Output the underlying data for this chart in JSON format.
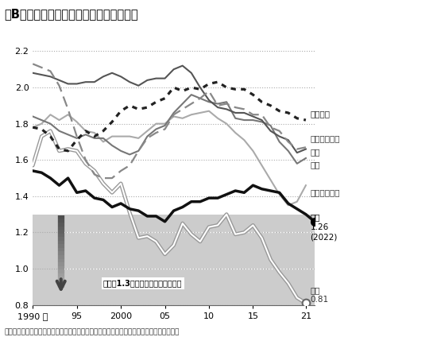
{
  "title": "図B　増加に転じた欧米の合計特殊出生率",
  "caption": "（世界銀行、各国政府統計、厚生労働省「人口動態総覧（率）の国際比較」等を基に作成）",
  "xlim": [
    1990,
    2022
  ],
  "ylim": [
    0.8,
    2.25
  ],
  "yticks": [
    0.8,
    1.0,
    1.2,
    1.4,
    1.6,
    1.8,
    2.0,
    2.2
  ],
  "xticks": [
    1990,
    1995,
    2000,
    2005,
    2010,
    2015,
    2021
  ],
  "xticklabels": [
    "1990 年",
    "95",
    "2000",
    "05",
    "10",
    "15",
    "21"
  ],
  "threshold": 1.3,
  "threshold_label": "出生率1.3未満＝急速な人口減少に",
  "japan_label": "日本\n1.26\n(2022)",
  "korea_label": "韓国\n0.81",
  "france_label": "フランス",
  "sweden_label": "スウェーデン",
  "usa_label": "米国",
  "uk_label": "英国",
  "finland_label": "フィンランド",
  "france": {
    "years": [
      1990,
      1991,
      1992,
      1993,
      1994,
      1995,
      1996,
      1997,
      1998,
      1999,
      2000,
      2001,
      2002,
      2003,
      2004,
      2005,
      2006,
      2007,
      2008,
      2009,
      2010,
      2011,
      2012,
      2013,
      2014,
      2015,
      2016,
      2017,
      2018,
      2019,
      2020,
      2021
    ],
    "values": [
      1.78,
      1.77,
      1.73,
      1.66,
      1.65,
      1.71,
      1.76,
      1.73,
      1.76,
      1.81,
      1.87,
      1.9,
      1.88,
      1.89,
      1.92,
      1.94,
      2.0,
      1.98,
      2.0,
      1.99,
      2.02,
      2.03,
      2.0,
      1.99,
      1.99,
      1.96,
      1.92,
      1.9,
      1.87,
      1.86,
      1.83,
      1.82
    ],
    "color": "#222222",
    "linewidth": 1.8
  },
  "sweden": {
    "years": [
      1990,
      1991,
      1992,
      1993,
      1994,
      1995,
      1996,
      1997,
      1998,
      1999,
      2000,
      2001,
      2002,
      2003,
      2004,
      2005,
      2006,
      2007,
      2008,
      2009,
      2010,
      2011,
      2012,
      2013,
      2014,
      2015,
      2016,
      2017,
      2018,
      2019,
      2020,
      2021
    ],
    "values": [
      2.13,
      2.11,
      2.09,
      2.01,
      1.88,
      1.73,
      1.6,
      1.52,
      1.5,
      1.5,
      1.54,
      1.57,
      1.65,
      1.72,
      1.75,
      1.77,
      1.85,
      1.88,
      1.91,
      1.94,
      1.98,
      1.9,
      1.91,
      1.89,
      1.88,
      1.85,
      1.85,
      1.78,
      1.76,
      1.7,
      1.66,
      1.67
    ],
    "color": "#888888",
    "linewidth": 1.6
  },
  "usa": {
    "years": [
      1990,
      1991,
      1992,
      1993,
      1994,
      1995,
      1996,
      1997,
      1998,
      1999,
      2000,
      2001,
      2002,
      2003,
      2004,
      2005,
      2006,
      2007,
      2008,
      2009,
      2010,
      2011,
      2012,
      2013,
      2014,
      2015,
      2016,
      2017,
      2018,
      2019,
      2020,
      2021
    ],
    "values": [
      2.08,
      2.07,
      2.06,
      2.04,
      2.02,
      2.02,
      2.03,
      2.03,
      2.06,
      2.08,
      2.06,
      2.03,
      2.01,
      2.04,
      2.05,
      2.05,
      2.1,
      2.12,
      2.08,
      2.0,
      1.93,
      1.89,
      1.88,
      1.86,
      1.86,
      1.84,
      1.82,
      1.76,
      1.73,
      1.71,
      1.64,
      1.66
    ],
    "color": "#555555",
    "linewidth": 1.5
  },
  "uk": {
    "years": [
      1990,
      1991,
      1992,
      1993,
      1994,
      1995,
      1996,
      1997,
      1998,
      1999,
      2000,
      2001,
      2002,
      2003,
      2004,
      2005,
      2006,
      2007,
      2008,
      2009,
      2010,
      2011,
      2012,
      2013,
      2014,
      2015,
      2016,
      2017,
      2018,
      2019,
      2020,
      2021
    ],
    "values": [
      1.84,
      1.82,
      1.8,
      1.76,
      1.74,
      1.72,
      1.74,
      1.72,
      1.72,
      1.68,
      1.65,
      1.63,
      1.65,
      1.73,
      1.77,
      1.79,
      1.86,
      1.91,
      1.96,
      1.94,
      1.92,
      1.91,
      1.92,
      1.83,
      1.82,
      1.82,
      1.81,
      1.79,
      1.7,
      1.65,
      1.58,
      1.61
    ],
    "color": "#777777",
    "linewidth": 1.5
  },
  "finland": {
    "years": [
      1990,
      1991,
      1992,
      1993,
      1994,
      1995,
      1996,
      1997,
      1998,
      1999,
      2000,
      2001,
      2002,
      2003,
      2004,
      2005,
      2006,
      2007,
      2008,
      2009,
      2010,
      2011,
      2012,
      2013,
      2014,
      2015,
      2016,
      2017,
      2018,
      2019,
      2020,
      2021
    ],
    "values": [
      1.78,
      1.8,
      1.85,
      1.82,
      1.85,
      1.81,
      1.76,
      1.75,
      1.7,
      1.73,
      1.73,
      1.73,
      1.72,
      1.76,
      1.8,
      1.8,
      1.84,
      1.83,
      1.85,
      1.86,
      1.87,
      1.83,
      1.8,
      1.75,
      1.71,
      1.65,
      1.57,
      1.49,
      1.41,
      1.35,
      1.37,
      1.46
    ],
    "color": "#aaaaaa",
    "linewidth": 1.5
  },
  "japan": {
    "years": [
      1990,
      1991,
      1992,
      1993,
      1994,
      1995,
      1996,
      1997,
      1998,
      1999,
      2000,
      2001,
      2002,
      2003,
      2004,
      2005,
      2006,
      2007,
      2008,
      2009,
      2010,
      2011,
      2012,
      2013,
      2014,
      2015,
      2016,
      2017,
      2018,
      2019,
      2020,
      2021,
      2022
    ],
    "values": [
      1.54,
      1.53,
      1.5,
      1.46,
      1.5,
      1.42,
      1.43,
      1.39,
      1.38,
      1.34,
      1.36,
      1.33,
      1.32,
      1.29,
      1.29,
      1.26,
      1.32,
      1.34,
      1.37,
      1.37,
      1.39,
      1.39,
      1.41,
      1.43,
      1.42,
      1.46,
      1.44,
      1.43,
      1.42,
      1.36,
      1.33,
      1.3,
      1.26
    ],
    "color": "#111111",
    "linewidth": 2.5
  },
  "korea": {
    "years": [
      1990,
      1991,
      1992,
      1993,
      1994,
      1995,
      1996,
      1997,
      1998,
      1999,
      2000,
      2001,
      2002,
      2003,
      2004,
      2005,
      2006,
      2007,
      2008,
      2009,
      2010,
      2011,
      2012,
      2013,
      2014,
      2015,
      2016,
      2017,
      2018,
      2019,
      2020,
      2021
    ],
    "values": [
      1.57,
      1.73,
      1.76,
      1.65,
      1.66,
      1.65,
      1.58,
      1.54,
      1.47,
      1.42,
      1.47,
      1.31,
      1.17,
      1.18,
      1.15,
      1.08,
      1.13,
      1.25,
      1.19,
      1.15,
      1.23,
      1.24,
      1.3,
      1.19,
      1.2,
      1.24,
      1.17,
      1.05,
      0.98,
      0.92,
      0.84,
      0.81
    ],
    "color": "#888888",
    "linewidth": 1.3
  }
}
